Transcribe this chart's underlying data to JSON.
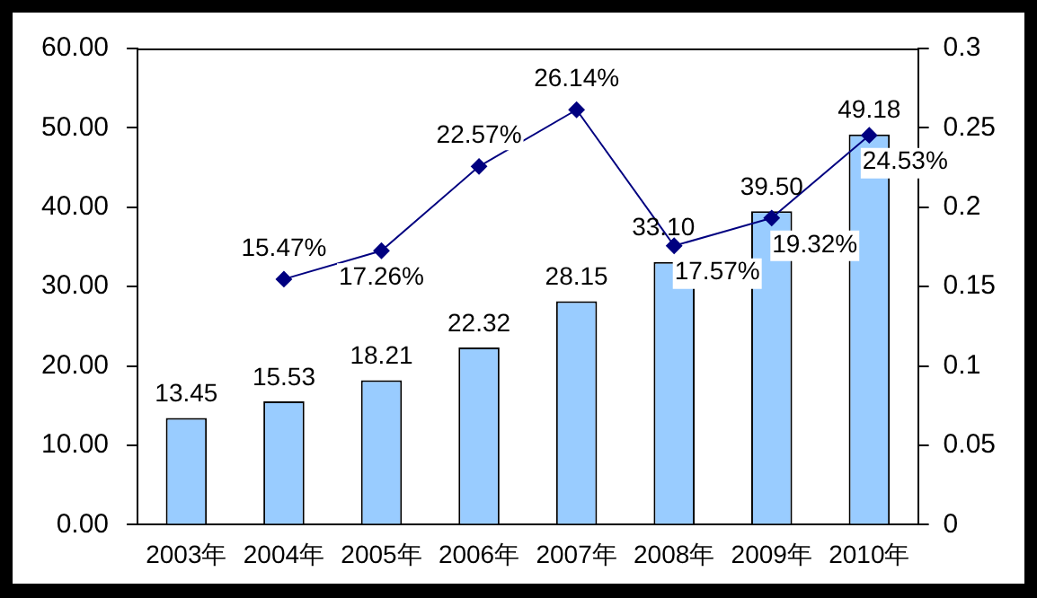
{
  "chart_data": {
    "type": "bar",
    "categories": [
      "2003年",
      "2004年",
      "2005年",
      "2006年",
      "2007年",
      "2008年",
      "2009年",
      "2010年"
    ],
    "series": [
      {
        "color": "#99ccff",
        "values": [
          13.45,
          15.53,
          18.21,
          22.32,
          28.15,
          33.1,
          39.5,
          49.18
        ],
        "value_labels": [
          "13.45",
          "15.53",
          "18.21",
          "22.32",
          "28.15",
          "33.10",
          "39.50",
          "49.18"
        ]
      },
      {
        "type": "line",
        "axis": "y2",
        "color": "#000080",
        "values": [
          null,
          0.1547,
          0.1726,
          0.2257,
          0.2614,
          0.1757,
          0.1932,
          0.2453
        ],
        "value_labels": [
          null,
          "15.47%",
          "17.26%",
          "22.57%",
          "26.14%",
          "17.57%",
          "19.32%",
          "24.53%"
        ]
      }
    ],
    "ylim": [
      0,
      60
    ],
    "yticks": [
      {
        "value": 0,
        "label": "0.00"
      },
      {
        "value": 10,
        "label": "10.00"
      },
      {
        "value": 20,
        "label": "20.00"
      },
      {
        "value": 30,
        "label": "30.00"
      },
      {
        "value": 40,
        "label": "40.00"
      },
      {
        "value": 50,
        "label": "50.00"
      },
      {
        "value": 60,
        "label": "60.00"
      }
    ],
    "y2lim": [
      0,
      0.3
    ],
    "y2ticks": [
      0,
      0.05,
      0.1,
      0.15,
      0.2,
      0.25,
      0.3
    ],
    "grid": false,
    "legend": false,
    "marker": "diamond"
  }
}
